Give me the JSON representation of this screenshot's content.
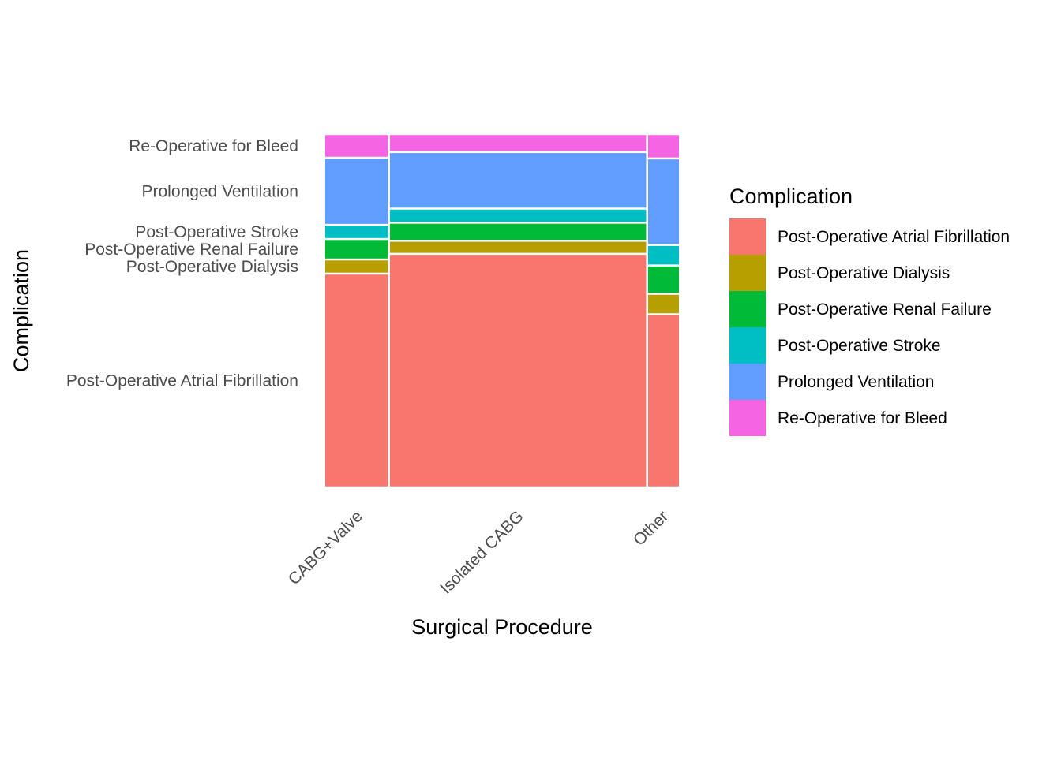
{
  "chart_data": {
    "type": "mosaic",
    "xlabel": "Surgical Procedure",
    "ylabel": "Complication",
    "legend_title": "Complication",
    "legend_position": "right",
    "categories": [
      "CABG+Valve",
      "Isolated CABG",
      "Other"
    ],
    "category_shares": [
      0.18,
      0.73,
      0.09
    ],
    "complications": [
      "Post-Operative Atrial Fibrillation",
      "Post-Operative Dialysis",
      "Post-Operative Renal Failure",
      "Post-Operative Stroke",
      "Prolonged Ventilation",
      "Re-Operative for Bleed"
    ],
    "y_tick_labels": [
      "Re-Operative for Bleed",
      "Prolonged Ventilation",
      "Post-Operative Stroke",
      "Post-Operative Renal Failure",
      "Post-Operative Dialysis",
      "Post-Operative Atrial Fibrillation"
    ],
    "colors": {
      "Post-Operative Atrial Fibrillation": "#F8766D",
      "Post-Operative Dialysis": "#B79F00",
      "Post-Operative Renal Failure": "#00BA38",
      "Post-Operative Stroke": "#00BFC4",
      "Prolonged Ventilation": "#619CFF",
      "Re-Operative for Bleed": "#F564E3"
    },
    "series": [
      {
        "name": "Post-Operative Atrial Fibrillation",
        "values": [
          0.605,
          0.661,
          0.49
        ]
      },
      {
        "name": "Post-Operative Dialysis",
        "values": [
          0.04,
          0.037,
          0.058
        ]
      },
      {
        "name": "Post-Operative Renal Failure",
        "values": [
          0.058,
          0.051,
          0.08
        ]
      },
      {
        "name": "Post-Operative Stroke",
        "values": [
          0.04,
          0.04,
          0.058
        ]
      },
      {
        "name": "Prolonged Ventilation",
        "values": [
          0.19,
          0.16,
          0.245
        ]
      },
      {
        "name": "Re-Operative for Bleed",
        "values": [
          0.067,
          0.051,
          0.069
        ]
      }
    ],
    "grid": false
  }
}
